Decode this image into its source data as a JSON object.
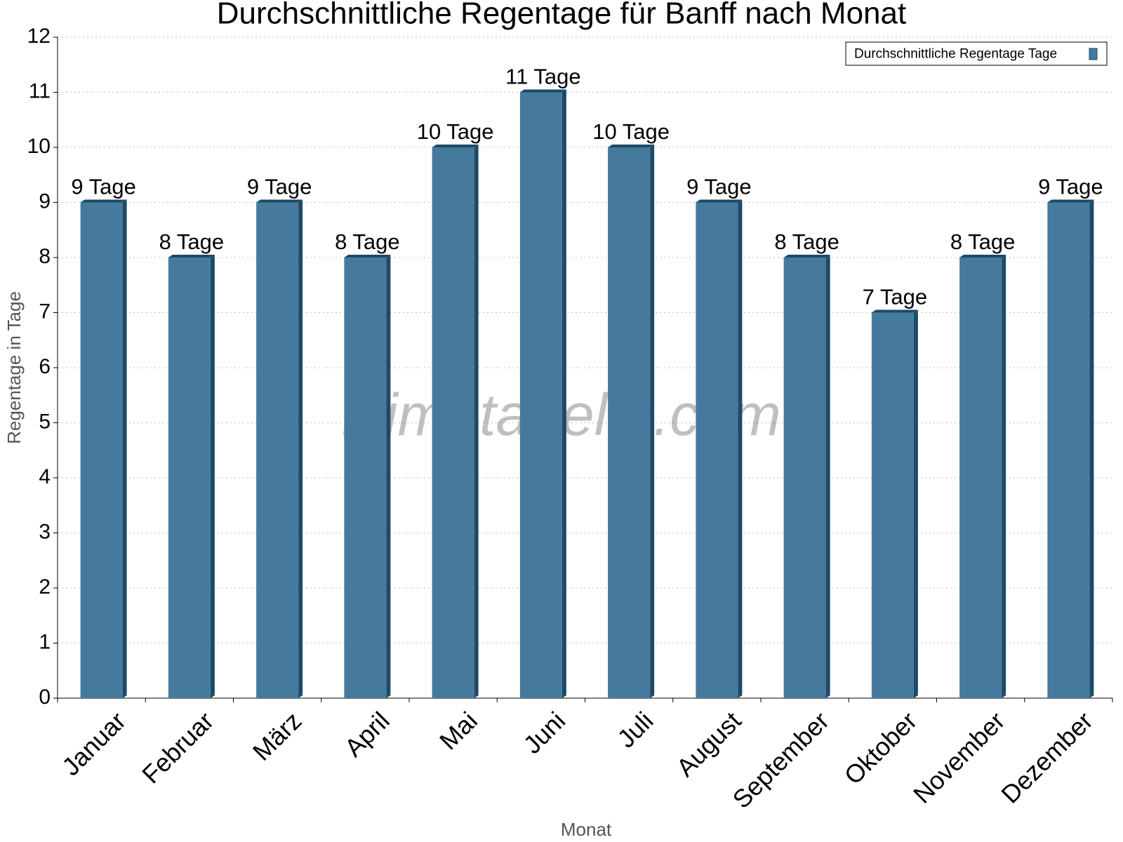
{
  "chart_data": {
    "type": "bar",
    "title": "Durchschnittliche Regentage für Banff nach Monat",
    "x_label": "Monat",
    "y_label": "Regentage in Tage",
    "watermark": "klimatabelle.com",
    "categories": [
      "Januar",
      "Februar",
      "März",
      "April",
      "Mai",
      "Juni",
      "Juli",
      "August",
      "September",
      "Oktober",
      "November",
      "Dezember"
    ],
    "series": [
      {
        "name": "Durchschnittliche Regentage Tage",
        "color": "#467a9c",
        "values": [
          9,
          8,
          9,
          8,
          10,
          11,
          10,
          9,
          8,
          7,
          8,
          9
        ],
        "value_labels": [
          "9 Tage",
          "8 Tage",
          "9 Tage",
          "8 Tage",
          "10 Tage",
          "11 Tage",
          "10 Tage",
          "9 Tage",
          "8 Tage",
          "7 Tage",
          "8 Tage",
          "9 Tage"
        ]
      }
    ],
    "ylim": [
      0,
      12
    ],
    "yticks": [
      0,
      1,
      2,
      3,
      4,
      5,
      6,
      7,
      8,
      9,
      10,
      11,
      12
    ],
    "grid": true,
    "legend": "top-right"
  }
}
